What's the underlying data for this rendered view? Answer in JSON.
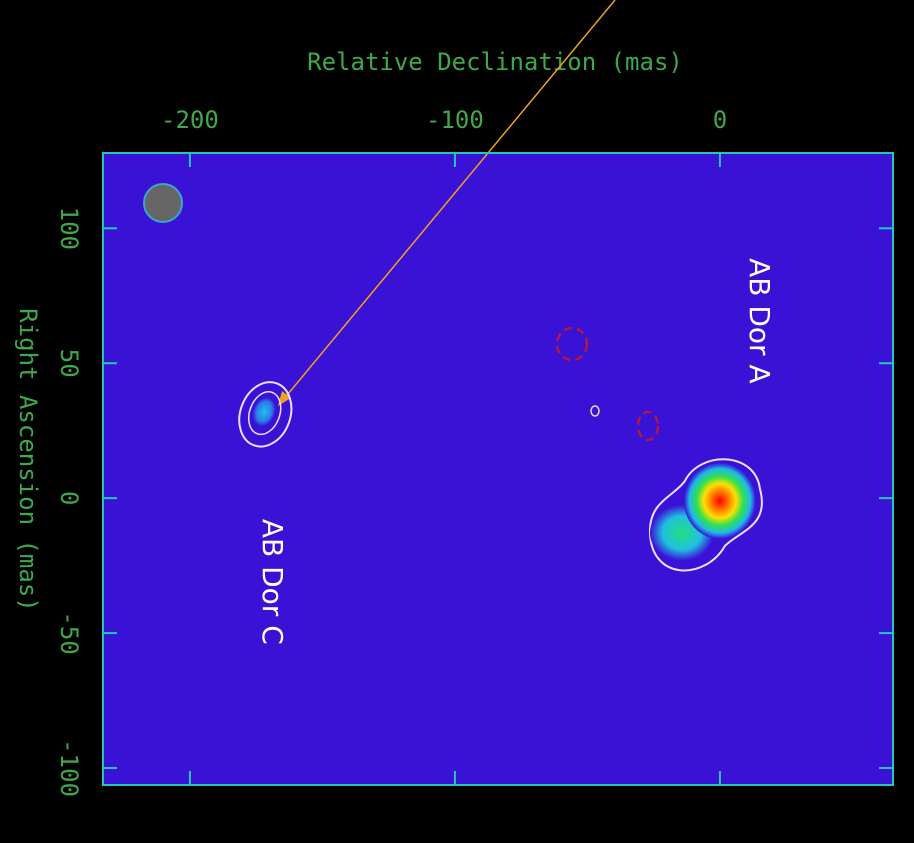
{
  "chart_data": {
    "type": "image",
    "xlabel": "Relative Declination  (mas)",
    "ylabel": "Right Ascension  (mas)",
    "xlim": [
      -232.8,
      65.3
    ],
    "xticks": [
      -200,
      -100,
      0
    ],
    "ylim": [
      -106.3,
      127.9
    ],
    "yticks": [
      100,
      50,
      0,
      -50,
      -100
    ],
    "sources": [
      {
        "label": "AB Dor A",
        "x": 0,
        "y": -1
      },
      {
        "label": "AB Dor C",
        "x": -172,
        "y": 32
      }
    ]
  }
}
